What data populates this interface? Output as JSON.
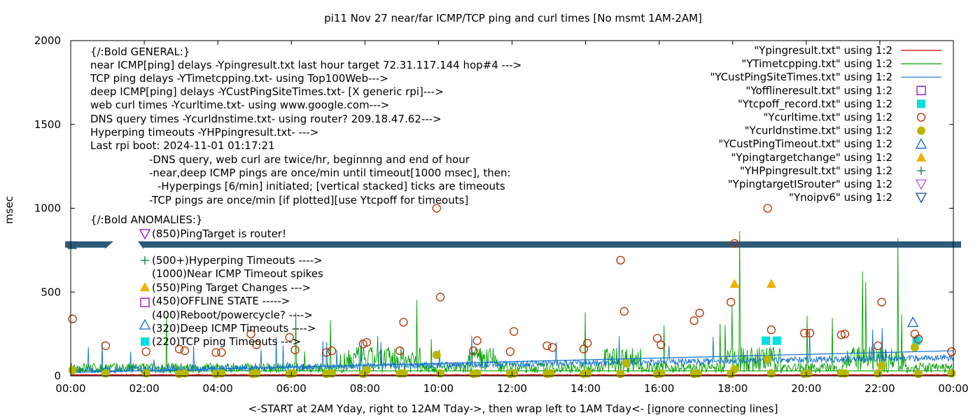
{
  "chart_data": {
    "type": "line",
    "title": "pi11 Nov 27  near/far ICMP/TCP ping and curl times [No msmt 1AM-2AM]",
    "xlabel": "<-START at 2AM Yday, right to 12AM Tday->, then wrap left to 1AM Tday<- [ignore connecting lines]",
    "ylabel": "msec",
    "xlim": [
      0,
      24
    ],
    "ylim": [
      0,
      2000
    ],
    "x_ticks": [
      "00:00",
      "02:00",
      "04:00",
      "06:00",
      "08:00",
      "10:00",
      "12:00",
      "14:00",
      "16:00",
      "18:00",
      "20:00",
      "22:00",
      "00:00"
    ],
    "y_ticks": [
      "0",
      "500",
      "1000",
      "1500",
      "2000"
    ],
    "grid": false,
    "legend_position": "top-right",
    "annotation_lines": [
      "{/:Bold GENERAL:}",
      "near ICMP[ping] delays -Ypingresult.txt last hour target 72.31.117.144 hop#4 --->",
      "TCP ping delays -YTimetcpping.txt- using Top100Web--->",
      "deep ICMP[ping] delays -YCustPingSiteTimes.txt- [X generic rpi]--->",
      "web curl times -Ycurltime.txt- using www.google.com--->",
      "DNS query times -Ycurldnstime.txt- using router? 209.18.47.62--->",
      "Hyperping timeouts -YHPpingresult.txt- --->",
      "Last rpi boot: 2024-11-01 01:17:21",
      "-DNS query, web curl are twice/hr, beginnng and end of hour",
      "-near,deep ICMP pings are once/min until timeout[1000 msec], then:",
      "-Hyperpings [6/min] initiated; [vertical stacked] ticks are timeouts",
      "-TCP pings are once/min [if plotted][use Ytcpoff for timeouts]",
      "{/:Bold ANOMALIES:}",
      "(850)PingTarget is router!",
      "(500+)Hyperping Timeouts ---->",
      "(1000)Near ICMP Timeout spikes",
      "(550)Ping Target Changes --->",
      "(450)OFFLINE STATE ----->",
      "(400)Reboot/powercycle? ---->",
      "(320)Deep ICMP Timeouts ---->",
      "(220)TCP ping Timeouts --->"
    ],
    "series": [
      {
        "name": "\"Ypingresult.txt\" using 1:2",
        "color": "#cc0000",
        "marker": "line",
        "x": [
          0,
          24
        ],
        "y": [
          5,
          5
        ]
      },
      {
        "name": "\"YTimetcpping.txt\" using 1:2",
        "color": "#00a000",
        "marker": "line",
        "x": [
          0,
          24
        ],
        "y": [
          30,
          30
        ]
      },
      {
        "name": "\"YCustPingSiteTimes.txt\" using 1:2",
        "color": "#1070d0",
        "marker": "line",
        "x": [
          0,
          24
        ],
        "y": [
          20,
          150
        ]
      },
      {
        "name": "\"Yofflineresult.txt\" using 1:2",
        "color": "#9400d3",
        "marker": "open-square",
        "x": [],
        "y": []
      },
      {
        "name": "\"Ytcpoff_record.txt\" using 1:2",
        "color": "#00e0e0",
        "marker": "filled-square",
        "x": [
          18.9,
          19.2,
          23.0
        ],
        "y": [
          210,
          210,
          210
        ]
      },
      {
        "name": "\"Ycurltime.txt\" using 1:2",
        "color": "#b03000",
        "marker": "open-circle",
        "x": [
          0.05,
          0.95,
          2.05,
          2.95,
          3.1,
          3.95,
          4.1,
          4.9,
          5.05,
          5.95,
          6.1,
          6.95,
          7.1,
          7.95,
          8.05,
          8.95,
          9.05,
          9.95,
          10.05,
          10.95,
          11.05,
          11.95,
          12.05,
          12.95,
          13.1,
          13.95,
          14.05,
          14.95,
          15.05,
          15.95,
          16.05,
          16.95,
          17.1,
          17.95,
          18.05,
          18.95,
          19.05,
          19.95,
          20.1,
          20.95,
          21.05,
          21.95,
          22.05,
          22.95,
          23.05,
          23.95
        ],
        "y": [
          340,
          180,
          145,
          160,
          150,
          140,
          140,
          250,
          185,
          230,
          155,
          140,
          150,
          190,
          200,
          150,
          320,
          1000,
          470,
          150,
          210,
          145,
          265,
          180,
          170,
          160,
          195,
          690,
          385,
          225,
          185,
          330,
          375,
          440,
          790,
          1000,
          275,
          255,
          255,
          245,
          250,
          180,
          440,
          250,
          220,
          145
        ]
      },
      {
        "name": "\"Ycurldnstime.txt\" using 1:2",
        "color": "#b8b800",
        "marker": "filled-circle",
        "x": [
          0.05,
          0.95,
          2.05,
          2.95,
          3.1,
          3.95,
          4.1,
          4.95,
          5.05,
          5.95,
          6.05,
          6.95,
          7.1,
          7.95,
          8.05,
          8.95,
          9.05,
          9.95,
          10.05,
          10.95,
          11.05,
          11.95,
          12.05,
          12.95,
          13.05,
          13.95,
          14.05,
          14.95,
          15.1,
          15.95,
          16.05,
          16.95,
          17.05,
          17.95,
          18.05,
          18.95,
          19.05,
          19.95,
          20.05,
          20.95,
          21.05,
          21.95,
          22.05,
          22.95,
          23.05,
          23.95
        ],
        "y": [
          35,
          15,
          15,
          12,
          15,
          12,
          15,
          12,
          15,
          12,
          15,
          12,
          15,
          12,
          35,
          15,
          15,
          125,
          15,
          12,
          15,
          12,
          15,
          12,
          15,
          12,
          15,
          12,
          75,
          12,
          15,
          12,
          15,
          12,
          40,
          100,
          15,
          12,
          15,
          15,
          15,
          15,
          60,
          170,
          12,
          15
        ]
      },
      {
        "name": "\"YCustPingTimeout.txt\" using 1:2",
        "color": "#1060d0",
        "marker": "open-triangle-up",
        "x": [
          22.9
        ],
        "y": [
          320
        ]
      },
      {
        "name": "\"Ypingtargetchange\" using 1:2",
        "color": "#f0b000",
        "marker": "filled-triangle-up",
        "x": [
          18.05,
          19.05
        ],
        "y": [
          550,
          550
        ]
      },
      {
        "name": "\"YHPpingresult.txt\" using 1:2",
        "color": "#008040",
        "marker": "plus",
        "x": [],
        "y": []
      },
      {
        "name": "\"YpingtargetISrouter\" using 1:2",
        "color": "#b050e0",
        "marker": "open-triangle-down",
        "x": [],
        "y": []
      },
      {
        "name": "\"Ynoipv6\" using 1:2",
        "color": "#1a4a90",
        "marker": "open-triangle-down",
        "x": [],
        "y": []
      }
    ]
  }
}
